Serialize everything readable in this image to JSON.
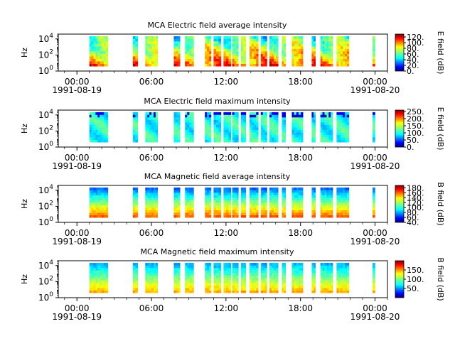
{
  "chart_data": [
    {
      "type": "heatmap",
      "title": "MCA  Electric field average intensity",
      "ylabel": "Hz",
      "yscale": "log",
      "ylim": [
        1,
        40000
      ],
      "yticks": [
        "10^0",
        "10^2",
        "10^4"
      ],
      "xlim_hours": [
        -1.5,
        25
      ],
      "xticks": [
        {
          "time": "00:00",
          "date": "1991-08-19"
        },
        {
          "time": "06:00",
          "date": ""
        },
        {
          "time": "12:00",
          "date": ""
        },
        {
          "time": "18:00",
          "date": ""
        },
        {
          "time": "00:00",
          "date": "1991-08-20"
        }
      ],
      "colorbar": {
        "label": "E field (dB)",
        "range": [
          0,
          130
        ],
        "ticks": [
          "0.",
          "20.",
          "40.",
          "60.",
          "80.",
          "100.",
          "120."
        ]
      },
      "intensity_profile": "electric_avg"
    },
    {
      "type": "heatmap",
      "title": "MCA  Electric field maximum intensity",
      "ylabel": "Hz",
      "yscale": "log",
      "ylim": [
        1,
        40000
      ],
      "yticks": [
        "10^0",
        "10^2",
        "10^4"
      ],
      "xlim_hours": [
        -1.5,
        25
      ],
      "xticks": [
        {
          "time": "00:00",
          "date": "1991-08-19"
        },
        {
          "time": "06:00",
          "date": ""
        },
        {
          "time": "12:00",
          "date": ""
        },
        {
          "time": "18:00",
          "date": ""
        },
        {
          "time": "00:00",
          "date": "1991-08-20"
        }
      ],
      "colorbar": {
        "label": "E field (dB)",
        "range": [
          0,
          260
        ],
        "ticks": [
          "0.",
          "50.",
          "100.",
          "150.",
          "200.",
          "250."
        ]
      },
      "intensity_profile": "electric_max"
    },
    {
      "type": "heatmap",
      "title": "MCA  Magnetic field average intensity",
      "ylabel": "Hz",
      "yscale": "log",
      "ylim": [
        1,
        40000
      ],
      "yticks": [
        "10^0",
        "10^2",
        "10^4"
      ],
      "xlim_hours": [
        -1.5,
        25
      ],
      "xticks": [
        {
          "time": "00:00",
          "date": "1991-08-19"
        },
        {
          "time": "06:00",
          "date": ""
        },
        {
          "time": "12:00",
          "date": ""
        },
        {
          "time": "18:00",
          "date": ""
        },
        {
          "time": "00:00",
          "date": "1991-08-20"
        }
      ],
      "colorbar": {
        "label": "B field (dB)",
        "range": [
          40,
          190
        ],
        "ticks": [
          "40.",
          "60.",
          "80.",
          "100.",
          "120.",
          "140.",
          "160.",
          "180."
        ]
      },
      "intensity_profile": "magnetic_avg"
    },
    {
      "type": "heatmap",
      "title": "MCA  Magnetic field maximum intensity",
      "ylabel": "Hz",
      "yscale": "log",
      "ylim": [
        1,
        40000
      ],
      "yticks": [
        "10^0",
        "10^2",
        "10^4"
      ],
      "xlim_hours": [
        -1.5,
        25
      ],
      "xticks": [
        {
          "time": "00:00",
          "date": "1991-08-19"
        },
        {
          "time": "06:00",
          "date": ""
        },
        {
          "time": "12:00",
          "date": ""
        },
        {
          "time": "18:00",
          "date": ""
        },
        {
          "time": "00:00",
          "date": "1991-08-20"
        }
      ],
      "colorbar": {
        "label": "B field (dB)",
        "range": [
          0,
          200
        ],
        "ticks": [
          "50.",
          "100.",
          "150."
        ]
      },
      "intensity_profile": "magnetic_max"
    }
  ],
  "data_intervals_hours": [
    [
      1.0,
      2.5
    ],
    [
      4.5,
      4.9
    ],
    [
      5.5,
      6.5
    ],
    [
      7.8,
      8.3
    ],
    [
      8.7,
      9.4
    ],
    [
      10.3,
      10.8
    ],
    [
      11.0,
      11.6
    ],
    [
      11.8,
      12.4
    ],
    [
      12.5,
      13.0
    ],
    [
      13.2,
      13.6
    ],
    [
      13.9,
      14.6
    ],
    [
      14.8,
      15.3
    ],
    [
      15.5,
      16.2
    ],
    [
      16.5,
      16.8
    ],
    [
      17.3,
      18.2
    ],
    [
      18.9,
      19.2
    ],
    [
      19.6,
      20.6
    ],
    [
      20.9,
      21.9
    ],
    [
      23.8,
      24.0
    ]
  ],
  "colors": {
    "axis": "#000000",
    "background": "#ffffff"
  }
}
